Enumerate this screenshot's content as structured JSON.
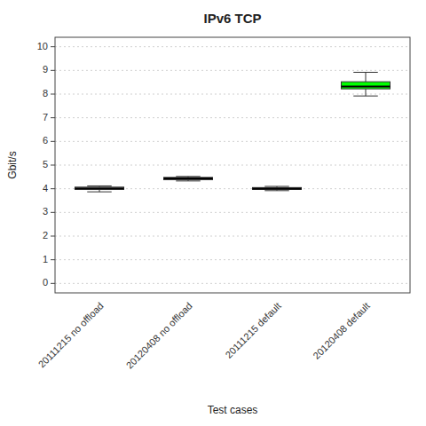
{
  "chart_data": {
    "type": "box",
    "title": "IPv6 TCP",
    "x_label": "Test cases",
    "y_label": "Gbit/s",
    "categories": [
      "20111215 no offload",
      "20120408 no offload",
      "20111215 default",
      "20120408 default"
    ],
    "q1": [
      3.97,
      4.38,
      3.97,
      8.22
    ],
    "median": [
      4.02,
      4.44,
      4.01,
      8.32
    ],
    "q3": [
      4.07,
      4.48,
      4.05,
      8.52
    ],
    "whislo": [
      3.87,
      4.33,
      3.92,
      7.92
    ],
    "whishi": [
      4.12,
      4.52,
      4.1,
      8.92
    ],
    "colors": [
      "white",
      "white",
      "white",
      "#00ff00"
    ],
    "ylim": [
      -0.4,
      10.4
    ],
    "yticks": [
      0,
      1,
      2,
      3,
      4,
      5,
      6,
      7,
      8,
      9,
      10
    ],
    "grid": true
  }
}
